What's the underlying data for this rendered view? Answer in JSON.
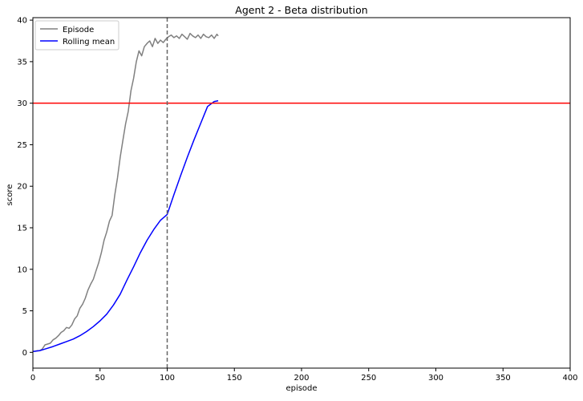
{
  "chart_data": {
    "type": "line",
    "title": "Agent 2 - Beta distribution",
    "xlabel": "episode",
    "ylabel": "score",
    "xlim": [
      0,
      400
    ],
    "ylim": [
      -1.9,
      40.3
    ],
    "xticks": [
      0,
      50,
      100,
      150,
      200,
      250,
      300,
      350,
      400
    ],
    "yticks": [
      0,
      5,
      10,
      15,
      20,
      25,
      30,
      35,
      40
    ],
    "grid": false,
    "legend_position": "top-left",
    "reference_lines": [
      {
        "orientation": "horizontal",
        "value": 30,
        "color": "#ff0000",
        "style": "solid"
      },
      {
        "orientation": "vertical",
        "value": 100,
        "color": "#666666",
        "style": "dashed"
      }
    ],
    "series": [
      {
        "name": "Episode",
        "color": "#808080",
        "x": [
          1,
          3,
          5,
          7,
          9,
          11,
          13,
          15,
          17,
          19,
          21,
          23,
          25,
          27,
          29,
          31,
          33,
          35,
          37,
          39,
          41,
          43,
          45,
          47,
          49,
          51,
          53,
          55,
          57,
          59,
          61,
          63,
          65,
          67,
          69,
          71,
          73,
          75,
          77,
          79,
          81,
          83,
          85,
          87,
          89,
          91,
          93,
          95,
          97,
          99,
          101,
          103,
          105,
          107,
          109,
          111,
          113,
          115,
          117,
          119,
          121,
          123,
          125,
          127,
          129,
          131,
          133,
          135,
          137,
          138
        ],
        "y": [
          0.1,
          0.2,
          0.2,
          0.4,
          0.9,
          1.0,
          1.1,
          1.5,
          1.7,
          2.0,
          2.4,
          2.6,
          3.0,
          2.9,
          3.3,
          4.0,
          4.4,
          5.3,
          5.8,
          6.5,
          7.5,
          8.2,
          8.8,
          9.8,
          10.8,
          12.0,
          13.5,
          14.5,
          15.8,
          16.5,
          19.0,
          21.0,
          23.5,
          25.5,
          27.5,
          29.0,
          31.5,
          33.0,
          35.0,
          36.3,
          35.7,
          36.8,
          37.2,
          37.5,
          36.8,
          37.8,
          37.2,
          37.6,
          37.3,
          37.7,
          38.0,
          38.2,
          37.9,
          38.1,
          37.8,
          38.3,
          38.0,
          37.7,
          38.4,
          38.1,
          37.9,
          38.2,
          37.8,
          38.3,
          38.0,
          37.9,
          38.2,
          37.8,
          38.3,
          38.1
        ]
      },
      {
        "name": "Rolling mean",
        "color": "#0000ff",
        "x": [
          0,
          5,
          10,
          15,
          20,
          25,
          30,
          35,
          40,
          45,
          50,
          55,
          60,
          65,
          70,
          75,
          80,
          85,
          90,
          95,
          100,
          105,
          110,
          115,
          120,
          125,
          130,
          135,
          138
        ],
        "y": [
          0.1,
          0.2,
          0.45,
          0.7,
          1.0,
          1.3,
          1.6,
          2.0,
          2.5,
          3.1,
          3.8,
          4.6,
          5.7,
          7.0,
          8.7,
          10.3,
          12.0,
          13.5,
          14.8,
          15.9,
          16.6,
          19.0,
          21.3,
          23.5,
          25.6,
          27.6,
          29.6,
          30.2,
          30.3
        ]
      }
    ]
  }
}
